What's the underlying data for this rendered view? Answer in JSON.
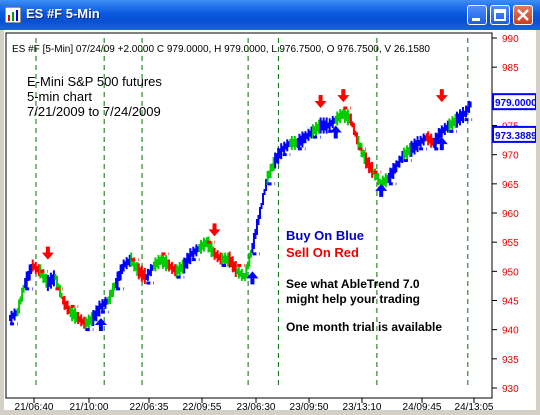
{
  "window": {
    "title": "ES #F  5-Min",
    "minimize_icon": "minimize-icon",
    "maximize_icon": "maximize-icon",
    "close_icon": "close-icon",
    "app_icon": "chart-app-icon"
  },
  "chart_data": {
    "type": "line",
    "header": "ES #F [5-Min] 07/24/09 +2.0000 C 979.0000, H 979.0000, L 976.7500, O 976.7500, V 26.1580",
    "annotations": {
      "line1": "E-Mini S&P 500 futures",
      "line2": "5-min chart",
      "line3": "7/21/2009 to 7/24/2009",
      "buy": "Buy On Blue",
      "sell": "Sell On Red",
      "promo1": "See what AbleTrend 7.0",
      "promo2": "might help your trading",
      "promo3": "One month trial is available"
    },
    "ylim": [
      930,
      990
    ],
    "yticks": [
      "990",
      "985",
      "980",
      "975",
      "970",
      "965",
      "960",
      "955",
      "950",
      "945",
      "940",
      "935",
      "930"
    ],
    "xticks": [
      "21/06:40",
      "21/10:00",
      "22/06:35",
      "22/09:55",
      "23/06:30",
      "23/09:50",
      "23/13:10",
      "24/09:45",
      "24/13:05"
    ],
    "price_labels": [
      {
        "text": "979.0000",
        "value": 979.0,
        "color": "#0000ff"
      },
      {
        "text": "973.3889",
        "value": 973.3889,
        "color": "#0000ff"
      }
    ],
    "grid": false,
    "series": [
      {
        "color": "#0000ff",
        "x": [
          0,
          8,
          16,
          24,
          32,
          40,
          48,
          56,
          64,
          72,
          80,
          88,
          96,
          104,
          112,
          120,
          128,
          136,
          144,
          152,
          160,
          168,
          176,
          184,
          192,
          200,
          208,
          216,
          224,
          232,
          240,
          248,
          256,
          264,
          272,
          280,
          288,
          296,
          304,
          312,
          320,
          328,
          336,
          344,
          352,
          360,
          368,
          376,
          384,
          392,
          400,
          408,
          416,
          424,
          432,
          440,
          448,
          456,
          464,
          472,
          480,
          488
        ],
        "y": [
          942,
          943,
          948,
          951,
          950,
          948,
          949,
          945,
          943,
          942,
          941,
          942,
          944,
          945,
          948,
          951,
          952,
          950,
          949,
          951,
          952,
          951,
          950,
          951,
          953,
          954,
          955,
          953,
          952,
          952,
          950,
          949,
          954,
          960,
          966,
          969,
          971,
          972,
          972,
          973,
          974,
          975,
          975,
          976,
          977,
          976,
          972,
          969,
          967,
          965,
          966,
          968,
          970,
          971,
          972,
          973,
          972,
          974,
          975,
          976,
          977,
          979
        ]
      }
    ],
    "buy_signals": [
      {
        "x": 96,
        "y": 942
      },
      {
        "x": 256,
        "y": 950
      },
      {
        "x": 344,
        "y": 975
      },
      {
        "x": 392,
        "y": 965
      },
      {
        "x": 456,
        "y": 973
      }
    ],
    "sell_signals": [
      {
        "x": 40,
        "y": 952
      },
      {
        "x": 216,
        "y": 956
      },
      {
        "x": 328,
        "y": 978
      },
      {
        "x": 352,
        "y": 979
      },
      {
        "x": 456,
        "y": 979
      }
    ],
    "session_breaks": [
      0,
      72,
      112,
      224,
      256,
      360,
      456
    ]
  }
}
